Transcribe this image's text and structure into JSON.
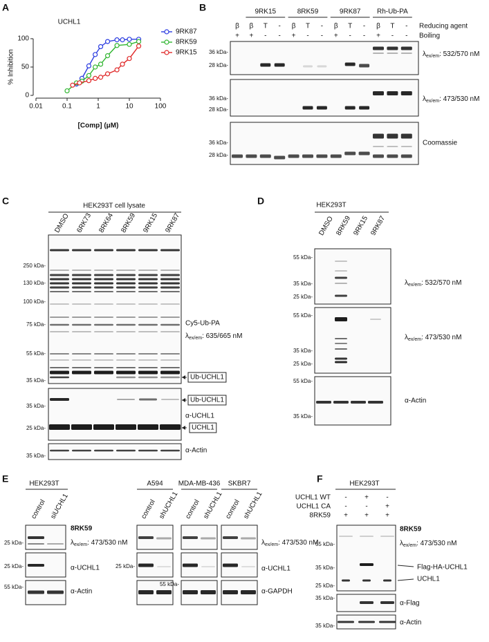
{
  "panel_labels": [
    "A",
    "B",
    "C",
    "D",
    "E",
    "F"
  ],
  "chart_data": {
    "type": "scatter",
    "title": "UCHL1",
    "x_label": "[Comp] (μM)",
    "y_label": "% Inhibition",
    "xscale": "log",
    "xlim": [
      0.01,
      100
    ],
    "xticks": [
      0.01,
      0.1,
      1,
      10,
      100
    ],
    "ylim": [
      0,
      100
    ],
    "yticks": [
      0,
      50,
      100
    ],
    "legend": "upper right",
    "series": [
      {
        "name": "9RK87",
        "color": "#2b3ce0",
        "x": [
          0.2,
          0.3,
          0.5,
          0.8,
          1.2,
          2,
          4,
          6,
          10,
          20
        ],
        "values": [
          20,
          30,
          52,
          72,
          86,
          95,
          98,
          98,
          99,
          99
        ]
      },
      {
        "name": "8RK59",
        "color": "#2fb52f",
        "x": [
          0.1,
          0.2,
          0.3,
          0.5,
          0.8,
          1.2,
          2,
          4,
          10,
          20
        ],
        "values": [
          8,
          22,
          25,
          35,
          50,
          55,
          70,
          88,
          90,
          95
        ]
      },
      {
        "name": "9RK15",
        "color": "#e02828",
        "x": [
          0.15,
          0.25,
          0.5,
          0.8,
          1.2,
          2,
          4,
          6,
          10,
          20
        ],
        "values": [
          18,
          22,
          26,
          30,
          32,
          38,
          45,
          55,
          65,
          87
        ]
      }
    ]
  },
  "panel_b": {
    "groups": [
      "9RK15",
      "8RK59",
      "9RK87",
      "Rh-Ub-PA"
    ],
    "reducing_agent": [
      "β",
      "β",
      "T",
      "-",
      "β",
      "T",
      "-",
      "β",
      "T",
      "-",
      "β",
      "T",
      "-"
    ],
    "boiling": [
      "+",
      "+",
      "-",
      "-",
      "+",
      "-",
      "-",
      "+",
      "-",
      "-",
      "+",
      "-",
      "-"
    ],
    "row_labels": [
      "Reducing agent",
      "Boiling"
    ],
    "markers": [
      "36 kDa-",
      "28 kDa-"
    ],
    "wavelength_1": {
      "symbol": "λ",
      "sub": "ex/em",
      "text": ": 532/570 nM"
    },
    "wavelength_2": {
      "symbol": "λ",
      "sub": "ex/em",
      "text": ": 473/530 nM"
    },
    "stain": "Coomassie"
  },
  "panel_c": {
    "title": "HEK293T cell lysate",
    "lanes": [
      "DMSO",
      "6RK73",
      "8RK64",
      "8RK59",
      "9RK15",
      "9RK87"
    ],
    "markers_1": [
      "250 kDa-",
      "130 kDa-",
      "100 kDa-",
      "75 kDa-",
      "55 kDa-",
      "35 kDa-"
    ],
    "probe": "Cy5-Ub-PA",
    "wavelength": {
      "symbol": "λ",
      "sub": "ex/em",
      "text": ": 635/665 nM"
    },
    "ub_uchl1": "Ub-UCHL1",
    "markers_2": [
      "35 kDa-",
      "25 kDa-"
    ],
    "antibody": "α-UCHL1",
    "uchl1": "UCHL1",
    "markers_3": [
      "35 kDa-"
    ],
    "actin": "α-Actin"
  },
  "panel_d": {
    "title": "HEK293T",
    "lanes": [
      "DMSO",
      "8RK59",
      "9RK15",
      "9RK87"
    ],
    "markers_1": [
      "55 kDa-",
      "35 kDa-",
      "25 kDa-"
    ],
    "wavelength_1": {
      "symbol": "λ",
      "sub": "ex/em",
      "text": ": 532/570 nM"
    },
    "wavelength_2": {
      "symbol": "λ",
      "sub": "ex/em",
      "text": ": 473/530 nM"
    },
    "markers_3": [
      "55 kDa-",
      "35 kDa-"
    ],
    "actin": "α-Actin"
  },
  "panel_e": {
    "title": "HEK293T",
    "lanes_left": [
      "control",
      "siUCHL1"
    ],
    "markers_left": [
      "25 kDa-",
      "25 kDa-",
      "55 kDa-"
    ],
    "compound": "8RK59",
    "wavelength": {
      "symbol": "λ",
      "sub": "ex/em",
      "text": ": 473/530 nM"
    },
    "antibody": "α-UCHL1",
    "loading_left": "α-Actin",
    "cell_lines": [
      "A594",
      "MDA-MB-436",
      "SKBR7"
    ],
    "lanes_right": [
      "control",
      "shUCHL1"
    ],
    "markers_right": [
      "25 kDa-",
      "55 kDa-"
    ],
    "loading_right": "α-GAPDH"
  },
  "panel_f": {
    "title": "HEK293T",
    "rows": [
      {
        "label": "UCHL1 WT",
        "values": [
          "-",
          "+",
          "-"
        ]
      },
      {
        "label": "UCHL1 CA",
        "values": [
          "-",
          "-",
          "+"
        ]
      },
      {
        "label": "8RK59",
        "values": [
          "+",
          "+",
          "+"
        ]
      }
    ],
    "markers_1": [
      "55 kDa-",
      "35 kDa-",
      "25 kDa-"
    ],
    "compound": "8RK59",
    "wavelength": {
      "symbol": "λ",
      "sub": "ex/em",
      "text": ": 473/530 nM"
    },
    "flag_ha": "Flag-HA-UCHL1",
    "uchl1": "UCHL1",
    "markers_2": [
      "35 kDa-"
    ],
    "flag": "α-Flag",
    "markers_3": [
      "35 kDa-"
    ],
    "actin": "α-Actin"
  }
}
